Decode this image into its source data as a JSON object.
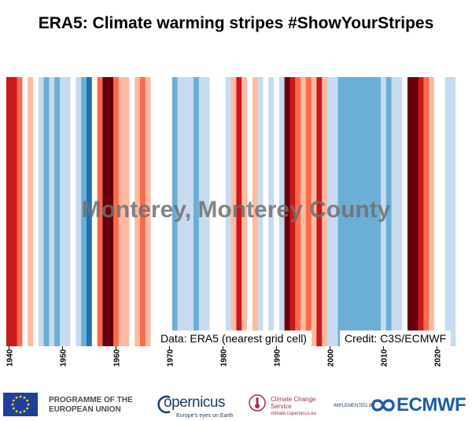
{
  "title": "ERA5: Climate warming stripes #ShowYourStripes",
  "overlay_label": "Monterey, Monterey County",
  "data_note": "Data: ERA5 (nearest grid cell)",
  "credit_note": "Credit: C3S/ECMWF",
  "chart_data": {
    "type": "heatmap",
    "title": "ERA5: Climate warming stripes #ShowYourStripes",
    "location": "Monterey, Monterey County",
    "x_start": 1940,
    "x_end": 2024,
    "xticks": [
      1940,
      1950,
      1960,
      1970,
      1980,
      1990,
      2000,
      2010,
      2020
    ],
    "x_tick_labels": [
      "1940",
      "1950",
      "1960",
      "1970",
      "1980",
      "1990",
      "2000",
      "2010",
      "2020"
    ],
    "years": [
      1940,
      1941,
      1942,
      1943,
      1944,
      1945,
      1946,
      1947,
      1948,
      1949,
      1950,
      1951,
      1952,
      1953,
      1954,
      1955,
      1956,
      1957,
      1958,
      1959,
      1960,
      1961,
      1962,
      1963,
      1964,
      1965,
      1966,
      1967,
      1968,
      1969,
      1970,
      1971,
      1972,
      1973,
      1974,
      1975,
      1976,
      1977,
      1978,
      1979,
      1980,
      1981,
      1982,
      1983,
      1984,
      1985,
      1986,
      1987,
      1988,
      1989,
      1990,
      1991,
      1992,
      1993,
      1994,
      1995,
      1996,
      1997,
      1998,
      1999,
      2000,
      2001,
      2002,
      2003,
      2004,
      2005,
      2006,
      2007,
      2008,
      2009,
      2010,
      2011,
      2012,
      2013,
      2014,
      2015,
      2016,
      2017,
      2018,
      2019,
      2020,
      2021,
      2022,
      2023,
      2024
    ],
    "anomaly_level": [
      3,
      3,
      2,
      0,
      1,
      0,
      -1,
      -2,
      -1,
      -2,
      -1,
      -1,
      0,
      -1,
      -2,
      -3,
      0,
      2,
      4,
      4,
      2,
      1,
      1,
      0,
      1,
      2,
      1,
      0,
      0,
      0,
      0,
      -2,
      -1,
      -1,
      -1,
      -2,
      -1,
      -1,
      0,
      0,
      0,
      -1,
      1,
      3,
      1,
      0,
      1,
      -1,
      0,
      -1,
      0,
      -1,
      4,
      3,
      2,
      1,
      2,
      1,
      3,
      1,
      -1,
      -1,
      -2,
      -2,
      -2,
      -2,
      -2,
      -2,
      -2,
      -2,
      -1,
      -2,
      -1,
      -1,
      0,
      4,
      5,
      3,
      2,
      1,
      0,
      0,
      -1,
      -1,
      0
    ],
    "colorscale": [
      "#08306b",
      "#08519c",
      "#2171b5",
      "#4292c6",
      "#6baed6",
      "#9ecae1",
      "#c6dbef",
      "#deebf7",
      "#ffffff",
      "#fee0d2",
      "#fcbba1",
      "#fc9272",
      "#fb6a4a",
      "#ef3b2c",
      "#cb181d",
      "#a50f15",
      "#67000d"
    ],
    "grid": false,
    "legend": "none"
  },
  "logos": {
    "eu_program": "PROGRAMME OF THE EUROPEAN UNION",
    "copernicus_name": "opernicus",
    "copernicus_tagline": "Europe's eyes on Earth",
    "c3s_name": "Climate Change Service",
    "c3s_url": "climate.copernicus.eu",
    "implemented_by": "IMPLEMENTED BY",
    "ecmwf": "ECMWF"
  }
}
